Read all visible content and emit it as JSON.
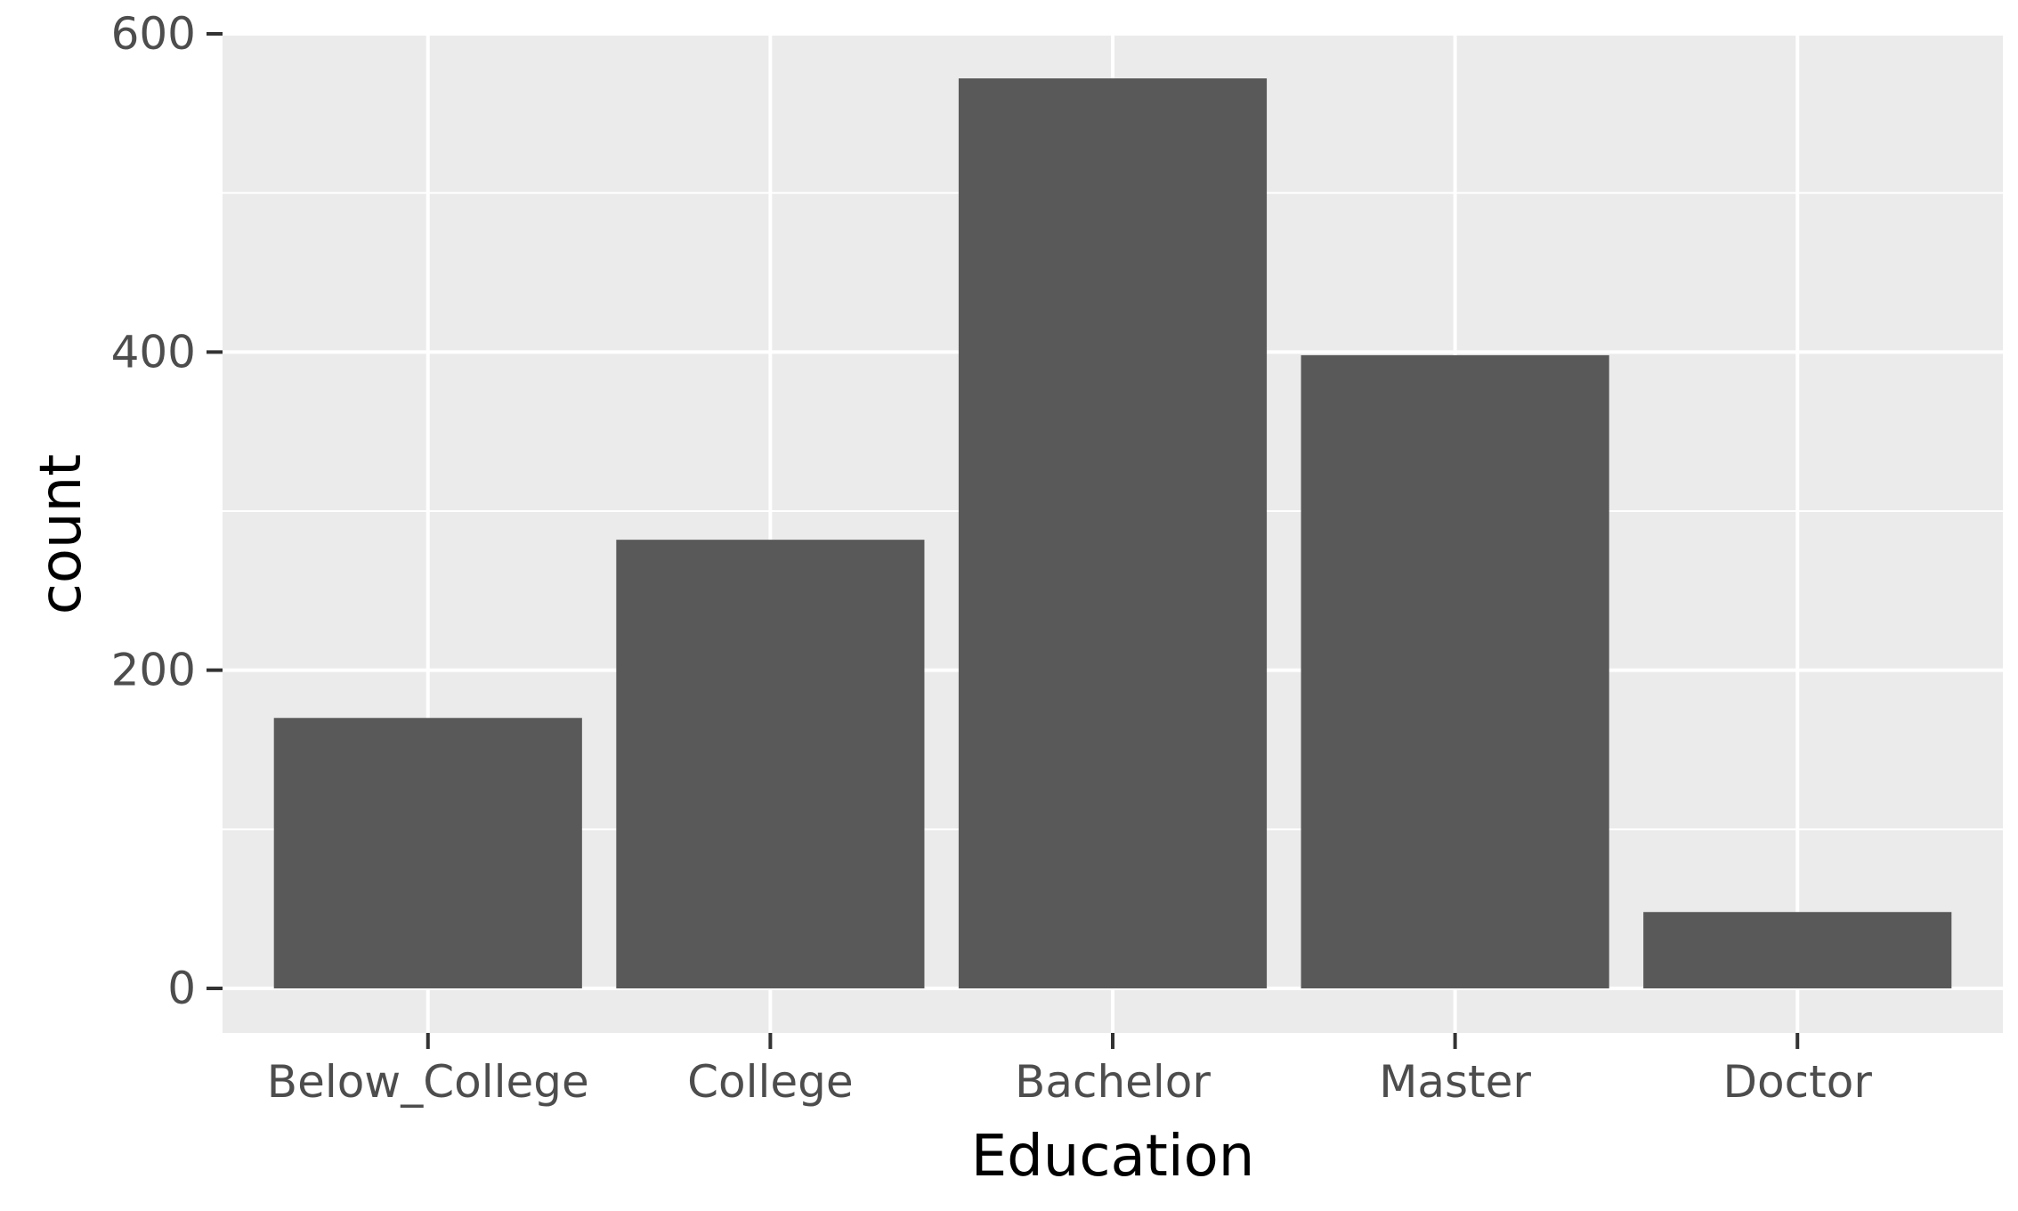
{
  "chart_data": {
    "type": "bar",
    "categories": [
      "Below_College",
      "College",
      "Bachelor",
      "Master",
      "Doctor"
    ],
    "values": [
      170,
      282,
      572,
      398,
      48
    ],
    "title": "",
    "xlabel": "Education",
    "ylabel": "count",
    "ylim": [
      0,
      600
    ],
    "yticks": [
      0,
      200,
      400,
      600
    ],
    "yticks_minor": [
      100,
      300,
      500
    ],
    "grid": true,
    "legend": "none",
    "colors": {
      "bar": "#595959",
      "panel": "#ebebeb",
      "grid": "#ffffff",
      "axis_text": "#4d4d4d",
      "axis_ticks": "#333333",
      "axis_title": "#000000"
    }
  }
}
